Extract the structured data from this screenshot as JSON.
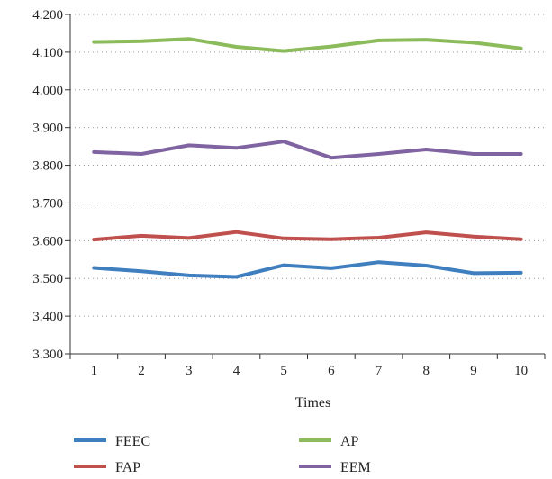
{
  "chart_data": {
    "type": "line",
    "title": "",
    "xlabel": "Times",
    "ylabel": "",
    "x": [
      1,
      2,
      3,
      4,
      5,
      6,
      7,
      8,
      9,
      10
    ],
    "ylim": [
      3.3,
      4.2
    ],
    "yticks": [
      "3.300",
      "3.400",
      "3.500",
      "3.600",
      "3.700",
      "3.800",
      "3.900",
      "4.000",
      "4.100",
      "4.200"
    ],
    "grid": "horizontal-dotted",
    "legend_position": "bottom",
    "series": [
      {
        "name": "FEEC",
        "color": "#3f7fbf",
        "values": [
          3.528,
          3.519,
          3.508,
          3.504,
          3.535,
          3.527,
          3.543,
          3.534,
          3.514,
          3.515
        ]
      },
      {
        "name": "FAP",
        "color": "#c0504d",
        "values": [
          3.603,
          3.613,
          3.607,
          3.623,
          3.606,
          3.604,
          3.608,
          3.622,
          3.611,
          3.604
        ]
      },
      {
        "name": "AP",
        "color": "#8bbb5a",
        "values": [
          4.127,
          4.129,
          4.135,
          4.114,
          4.103,
          4.115,
          4.131,
          4.133,
          4.125,
          4.11
        ]
      },
      {
        "name": "EEM",
        "color": "#8064a2",
        "values": [
          3.835,
          3.83,
          3.853,
          3.846,
          3.863,
          3.82,
          3.83,
          3.842,
          3.83,
          3.83
        ]
      }
    ]
  }
}
